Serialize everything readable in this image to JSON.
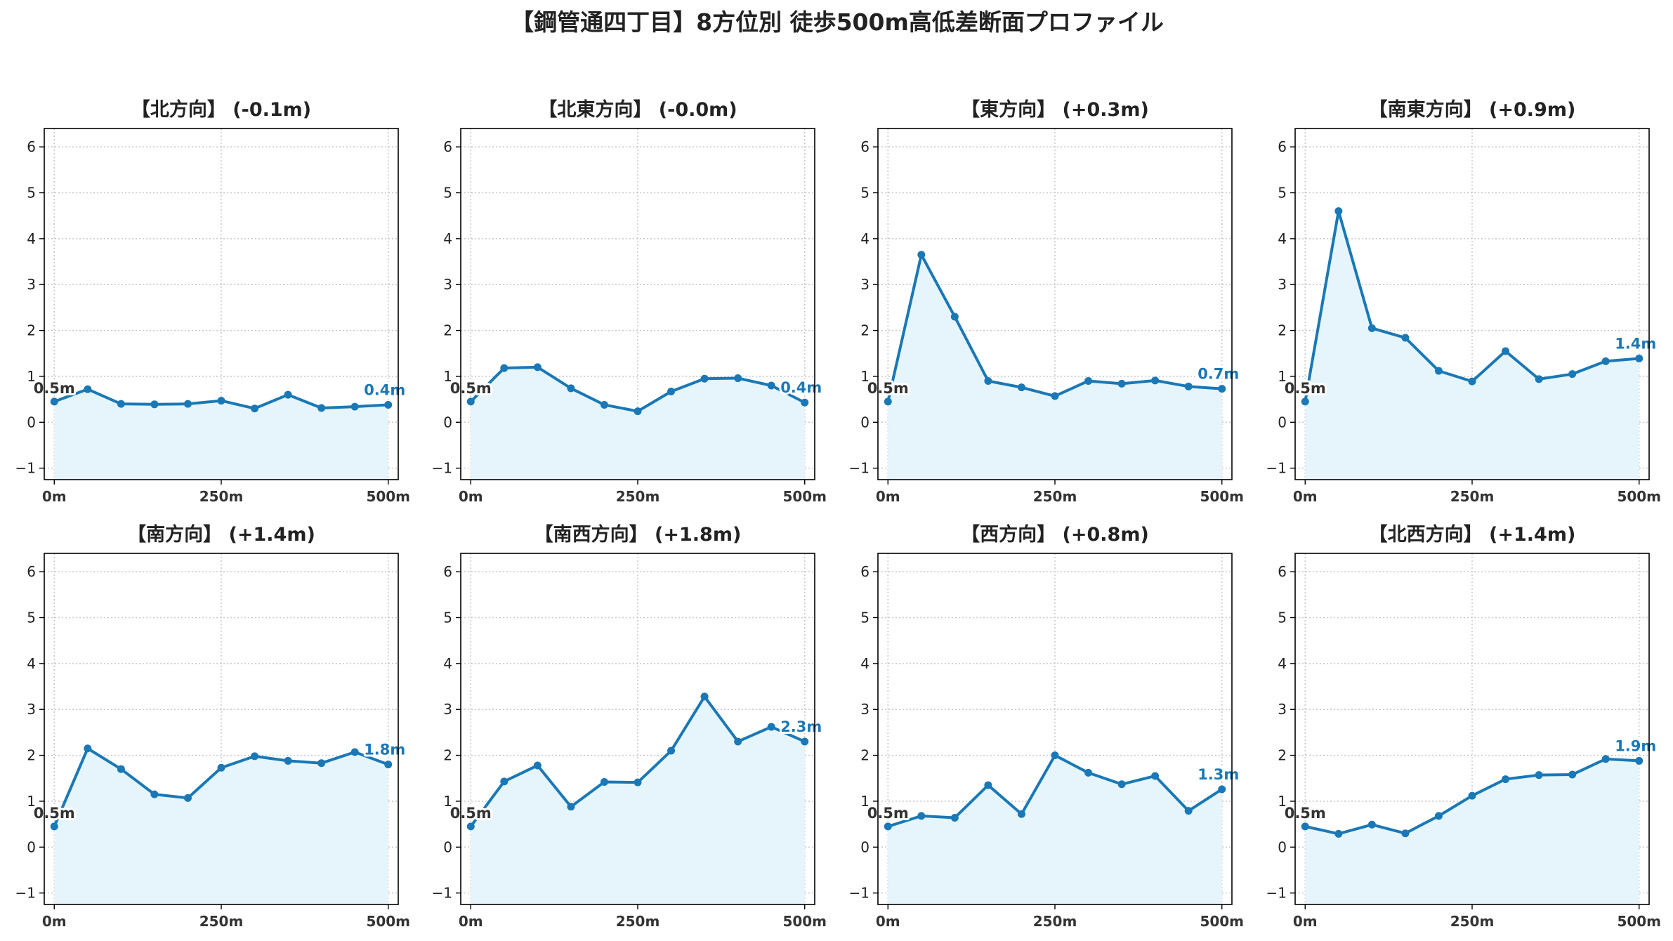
{
  "title": "【鋼管通四丁目】8方位別 徒歩500m高低差断面プロファイル",
  "colors": {
    "line": "#1a78b6",
    "fill": "#e5f5fb",
    "start_label": "#333333",
    "end_label": "#1a78b6",
    "grid": "#c8c8c8"
  },
  "chart_data": [
    {
      "type": "area",
      "title": "【北方向】 (-0.1m)",
      "x": [
        0,
        50,
        100,
        150,
        200,
        250,
        300,
        350,
        400,
        450,
        500
      ],
      "values": [
        0.45,
        0.72,
        0.4,
        0.39,
        0.4,
        0.47,
        0.3,
        0.6,
        0.31,
        0.34,
        0.38
      ],
      "xticks": [
        "0m",
        "250m",
        "500m"
      ],
      "yticks": [
        "−1",
        "0",
        "1",
        "2",
        "3",
        "4",
        "5",
        "6"
      ],
      "start_label": "0.5m",
      "end_label": "0.4m",
      "xlim": [
        -15,
        515
      ],
      "ylim": [
        -1.25,
        6.4
      ],
      "grid": true
    },
    {
      "type": "area",
      "title": "【北東方向】 (-0.0m)",
      "x": [
        0,
        50,
        100,
        150,
        200,
        250,
        300,
        350,
        400,
        450,
        500
      ],
      "values": [
        0.45,
        1.18,
        1.2,
        0.74,
        0.38,
        0.24,
        0.67,
        0.95,
        0.96,
        0.8,
        0.43
      ],
      "xticks": [
        "0m",
        "250m",
        "500m"
      ],
      "yticks": [
        "−1",
        "0",
        "1",
        "2",
        "3",
        "4",
        "5",
        "6"
      ],
      "start_label": "0.5m",
      "end_label": "0.4m",
      "xlim": [
        -15,
        515
      ],
      "ylim": [
        -1.25,
        6.4
      ],
      "grid": true
    },
    {
      "type": "area",
      "title": "【東方向】 (+0.3m)",
      "x": [
        0,
        50,
        100,
        150,
        200,
        250,
        300,
        350,
        400,
        450,
        500
      ],
      "values": [
        0.45,
        3.65,
        2.3,
        0.9,
        0.76,
        0.57,
        0.9,
        0.84,
        0.91,
        0.78,
        0.73
      ],
      "xticks": [
        "0m",
        "250m",
        "500m"
      ],
      "yticks": [
        "−1",
        "0",
        "1",
        "2",
        "3",
        "4",
        "5",
        "6"
      ],
      "start_label": "0.5m",
      "end_label": "0.7m",
      "xlim": [
        -15,
        515
      ],
      "ylim": [
        -1.25,
        6.4
      ],
      "grid": true
    },
    {
      "type": "area",
      "title": "【南東方向】 (+0.9m)",
      "x": [
        0,
        50,
        100,
        150,
        200,
        250,
        300,
        350,
        400,
        450,
        500
      ],
      "values": [
        0.45,
        4.6,
        2.05,
        1.84,
        1.12,
        0.89,
        1.55,
        0.94,
        1.05,
        1.33,
        1.39
      ],
      "xticks": [
        "0m",
        "250m",
        "500m"
      ],
      "yticks": [
        "−1",
        "0",
        "1",
        "2",
        "3",
        "4",
        "5",
        "6"
      ],
      "start_label": "0.5m",
      "end_label": "1.4m",
      "xlim": [
        -15,
        515
      ],
      "ylim": [
        -1.25,
        6.4
      ],
      "grid": true
    },
    {
      "type": "area",
      "title": "【南方向】 (+1.4m)",
      "x": [
        0,
        50,
        100,
        150,
        200,
        250,
        300,
        350,
        400,
        450,
        500
      ],
      "values": [
        0.45,
        2.15,
        1.7,
        1.15,
        1.07,
        1.73,
        1.98,
        1.88,
        1.83,
        2.07,
        1.8
      ],
      "xticks": [
        "0m",
        "250m",
        "500m"
      ],
      "yticks": [
        "−1",
        "0",
        "1",
        "2",
        "3",
        "4",
        "5",
        "6"
      ],
      "start_label": "0.5m",
      "end_label": "1.8m",
      "xlim": [
        -15,
        515
      ],
      "ylim": [
        -1.25,
        6.4
      ],
      "grid": true
    },
    {
      "type": "area",
      "title": "【南西方向】 (+1.8m)",
      "x": [
        0,
        50,
        100,
        150,
        200,
        250,
        300,
        350,
        400,
        450,
        500
      ],
      "values": [
        0.45,
        1.43,
        1.78,
        0.88,
        1.42,
        1.41,
        2.1,
        3.28,
        2.3,
        2.62,
        2.3
      ],
      "xticks": [
        "0m",
        "250m",
        "500m"
      ],
      "yticks": [
        "−1",
        "0",
        "1",
        "2",
        "3",
        "4",
        "5",
        "6"
      ],
      "start_label": "0.5m",
      "end_label": "2.3m",
      "xlim": [
        -15,
        515
      ],
      "ylim": [
        -1.25,
        6.4
      ],
      "grid": true
    },
    {
      "type": "area",
      "title": "【西方向】 (+0.8m)",
      "x": [
        0,
        50,
        100,
        150,
        200,
        250,
        300,
        350,
        400,
        450,
        500
      ],
      "values": [
        0.45,
        0.68,
        0.64,
        1.35,
        0.72,
        2.0,
        1.62,
        1.37,
        1.55,
        0.79,
        1.26
      ],
      "xticks": [
        "0m",
        "250m",
        "500m"
      ],
      "yticks": [
        "−1",
        "0",
        "1",
        "2",
        "3",
        "4",
        "5",
        "6"
      ],
      "start_label": "0.5m",
      "end_label": "1.3m",
      "xlim": [
        -15,
        515
      ],
      "ylim": [
        -1.25,
        6.4
      ],
      "grid": true
    },
    {
      "type": "area",
      "title": "【北西方向】 (+1.4m)",
      "x": [
        0,
        50,
        100,
        150,
        200,
        250,
        300,
        350,
        400,
        450,
        500
      ],
      "values": [
        0.45,
        0.29,
        0.49,
        0.3,
        0.68,
        1.12,
        1.48,
        1.57,
        1.58,
        1.92,
        1.88
      ],
      "xticks": [
        "0m",
        "250m",
        "500m"
      ],
      "yticks": [
        "−1",
        "0",
        "1",
        "2",
        "3",
        "4",
        "5",
        "6"
      ],
      "start_label": "0.5m",
      "end_label": "1.9m",
      "xlim": [
        -15,
        515
      ],
      "ylim": [
        -1.25,
        6.4
      ],
      "grid": true
    }
  ]
}
